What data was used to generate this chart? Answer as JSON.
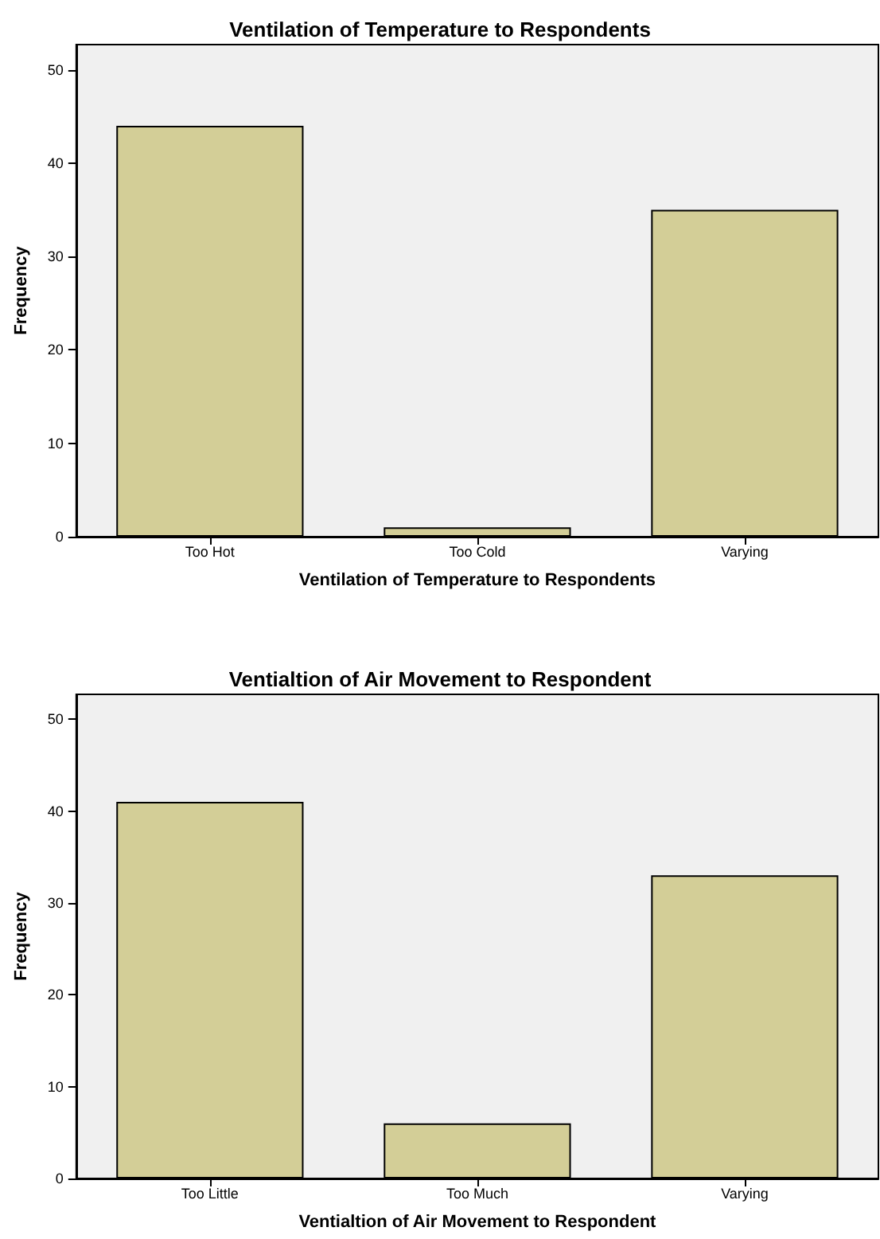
{
  "chart_data": [
    {
      "type": "bar",
      "title": "Ventilation of Temperature to Respondents",
      "xlabel": "Ventilation of Temperature to Respondents",
      "ylabel": "Frequency",
      "categories": [
        "Too Hot",
        "Too Cold",
        "Varying"
      ],
      "values": [
        44,
        1,
        35
      ],
      "color": "#d3ce97",
      "ylim": [
        0,
        52.7
      ],
      "yticks": [
        0,
        10,
        20,
        30,
        40,
        50
      ],
      "grid": false
    },
    {
      "type": "bar",
      "title": "Ventialtion of Air Movement to Respondent",
      "xlabel": "Ventialtion of Air Movement to Respondent",
      "ylabel": "Frequency",
      "categories": [
        "Too Little",
        "Too Much",
        "Varying"
      ],
      "values": [
        41,
        6,
        33
      ],
      "color": "#d3ce97",
      "ylim": [
        0,
        52.7
      ],
      "yticks": [
        0,
        10,
        20,
        30,
        40,
        50
      ],
      "grid": false
    }
  ]
}
